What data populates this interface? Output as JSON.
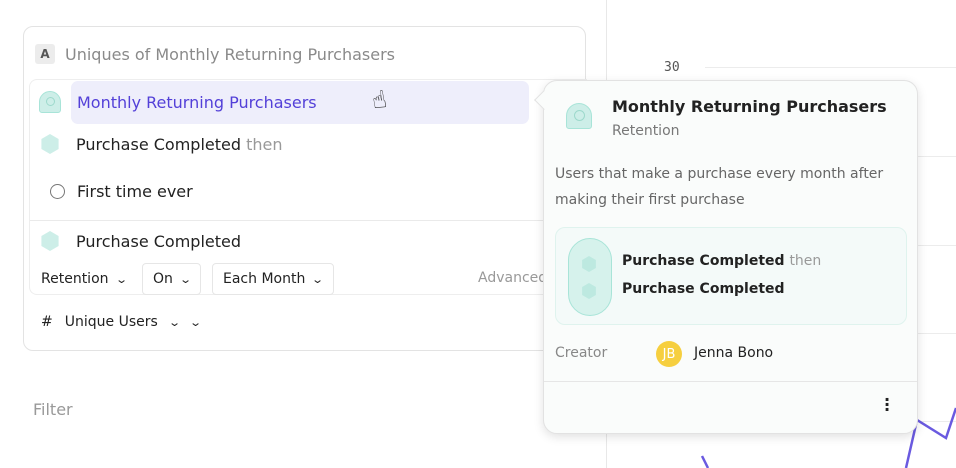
{
  "metric": {
    "badge": "A",
    "title": "Uniques of Monthly Returning Purchasers"
  },
  "rows": {
    "selected": "Monthly Returning Purchasers",
    "step1": "Purchase Completed",
    "step1_suffix": "then",
    "first_time": "First time ever",
    "step2": "Purchase Completed"
  },
  "controls": {
    "retention": "Retention",
    "on": "On",
    "each_month": "Each Month",
    "advanced": "Advanced"
  },
  "measure": {
    "hash": "#",
    "label": "Unique Users"
  },
  "filter": "Filter",
  "chart": {
    "y_tick": "30",
    "line_color": "#6a5ae0"
  },
  "popover": {
    "title": "Monthly Returning Purchasers",
    "subtitle": "Retention",
    "description": "Users that make a purchase every month after making their first purchase",
    "steps": [
      {
        "label": "Purchase Completed",
        "suffix": "then"
      },
      {
        "label": "Purchase Completed"
      }
    ],
    "creator_label": "Creator",
    "creator_initials": "JB",
    "creator_name": "Jenna Bono"
  },
  "colors": {
    "accent": "#5340d8",
    "teal": "#cdeee8",
    "avatar": "#f6cf3f"
  }
}
